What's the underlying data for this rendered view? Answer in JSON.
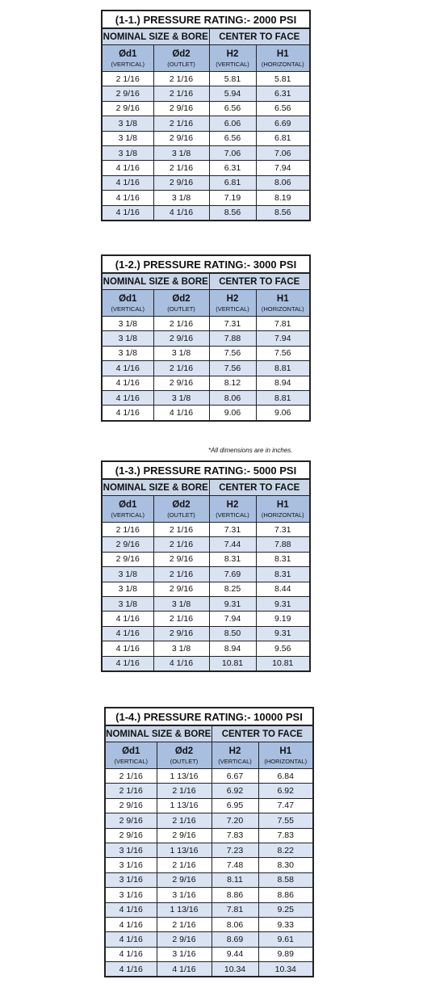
{
  "note": "*All dimensions are in inches.",
  "tables": [
    {
      "title": "(1-1.) PRESSURE RATING:- 2000 PSI",
      "group_left": "NOMINAL SIZE & BORE",
      "group_right": "CENTER TO FACE",
      "cols": [
        {
          "sym": "Ød1",
          "sub": "(VERTICAL)"
        },
        {
          "sym": "Ød2",
          "sub": "(OUTLET)"
        },
        {
          "sym": "H2",
          "sub": "(VERTICAL)"
        },
        {
          "sym": "H1",
          "sub": "(HORIZONTAL)"
        }
      ],
      "rows": [
        [
          "2 1/16",
          "2 1/16",
          "5.81",
          "5.81"
        ],
        [
          "2 9/16",
          "2 1/16",
          "5.94",
          "6.31"
        ],
        [
          "2 9/16",
          "2 9/16",
          "6.56",
          "6.56"
        ],
        [
          "3 1/8",
          "2 1/16",
          "6.06",
          "6.69"
        ],
        [
          "3 1/8",
          "2 9/16",
          "6.56",
          "6.81"
        ],
        [
          "3 1/8",
          "3 1/8",
          "7.06",
          "7.06"
        ],
        [
          "4 1/16",
          "2 1/16",
          "6.31",
          "7.94"
        ],
        [
          "4 1/16",
          "2 9/16",
          "6.81",
          "8.06"
        ],
        [
          "4 1/16",
          "3 1/8",
          "7.19",
          "8.19"
        ],
        [
          "4 1/16",
          "4 1/16",
          "8.56",
          "8.56"
        ]
      ]
    },
    {
      "title": "(1-2.) PRESSURE RATING:- 3000 PSI",
      "group_left": "NOMINAL SIZE & BORE",
      "group_right": "CENTER TO FACE",
      "cols": [
        {
          "sym": "Ød1",
          "sub": "(VERTICAL)"
        },
        {
          "sym": "Ød2",
          "sub": "(OUTLET)"
        },
        {
          "sym": "H2",
          "sub": "(VERTICAL)"
        },
        {
          "sym": "H1",
          "sub": "(HORIZONTAL)"
        }
      ],
      "rows": [
        [
          "3 1/8",
          "2 1/16",
          "7.31",
          "7.81"
        ],
        [
          "3 1/8",
          "2 9/16",
          "7.88",
          "7.94"
        ],
        [
          "3 1/8",
          "3 1/8",
          "7.56",
          "7.56"
        ],
        [
          "4 1/16",
          "2 1/16",
          "7.56",
          "8.81"
        ],
        [
          "4 1/16",
          "2 9/16",
          "8.12",
          "8.94"
        ],
        [
          "4 1/16",
          "3 1/8",
          "8.06",
          "8.81"
        ],
        [
          "4 1/16",
          "4 1/16",
          "9.06",
          "9.06"
        ]
      ]
    },
    {
      "title": "(1-3.) PRESSURE RATING:- 5000 PSI",
      "group_left": "NOMINAL SIZE & BORE",
      "group_right": "CENTER TO FACE",
      "cols": [
        {
          "sym": "Ød1",
          "sub": "(VERTICAL)"
        },
        {
          "sym": "Ød2",
          "sub": "(OUTLET)"
        },
        {
          "sym": "H2",
          "sub": "(VERTICAL)"
        },
        {
          "sym": "H1",
          "sub": "(HORIZONTAL)"
        }
      ],
      "rows": [
        [
          "2 1/16",
          "2 1/16",
          "7.31",
          "7.31"
        ],
        [
          "2 9/16",
          "2 1/16",
          "7.44",
          "7.88"
        ],
        [
          "2 9/16",
          "2 9/16",
          "8.31",
          "8.31"
        ],
        [
          "3 1/8",
          "2 1/16",
          "7.69",
          "8.31"
        ],
        [
          "3 1/8",
          "2 9/16",
          "8.25",
          "8.44"
        ],
        [
          "3 1/8",
          "3 1/8",
          "9.31",
          "9.31"
        ],
        [
          "4 1/16",
          "2 1/16",
          "7.94",
          "9.19"
        ],
        [
          "4 1/16",
          "2 9/16",
          "8.50",
          "9.31"
        ],
        [
          "4 1/16",
          "3 1/8",
          "8.94",
          "9.56"
        ],
        [
          "4 1/16",
          "4 1/16",
          "10.81",
          "10.81"
        ]
      ]
    },
    {
      "title": "(1-4.) PRESSURE RATING:- 10000 PSI",
      "group_left": "NOMINAL SIZE & BORE",
      "group_right": "CENTER TO FACE",
      "cols": [
        {
          "sym": "Ød1",
          "sub": "(VERTICAL)"
        },
        {
          "sym": "Ød2",
          "sub": "(OUTLET)"
        },
        {
          "sym": "H2",
          "sub": "(VERTICAL)"
        },
        {
          "sym": "H1",
          "sub": "(HORIZONTAL)"
        }
      ],
      "rows": [
        [
          "2 1/16",
          "1 13/16",
          "6.67",
          "6.84"
        ],
        [
          "2 1/16",
          "2 1/16",
          "6.92",
          "6.92"
        ],
        [
          "2 9/16",
          "1 13/16",
          "6.95",
          "7.47"
        ],
        [
          "2 9/16",
          "2 1/16",
          "7.20",
          "7.55"
        ],
        [
          "2 9/16",
          "2 9/16",
          "7.83",
          "7.83"
        ],
        [
          "3 1/16",
          "1 13/16",
          "7.23",
          "8.22"
        ],
        [
          "3 1/16",
          "2 1/16",
          "7.48",
          "8.30"
        ],
        [
          "3 1/16",
          "2 9/16",
          "8.11",
          "8.58"
        ],
        [
          "3 1/16",
          "3 1/16",
          "8.86",
          "8.86"
        ],
        [
          "4 1/16",
          "1 13/16",
          "7.81",
          "9.25"
        ],
        [
          "4 1/16",
          "2 1/16",
          "8.06",
          "9.33"
        ],
        [
          "4 1/16",
          "2 9/16",
          "8.69",
          "9.61"
        ],
        [
          "4 1/16",
          "3 1/16",
          "9.44",
          "9.89"
        ],
        [
          "4 1/16",
          "4 1/16",
          "10.34",
          "10.34"
        ]
      ]
    }
  ]
}
